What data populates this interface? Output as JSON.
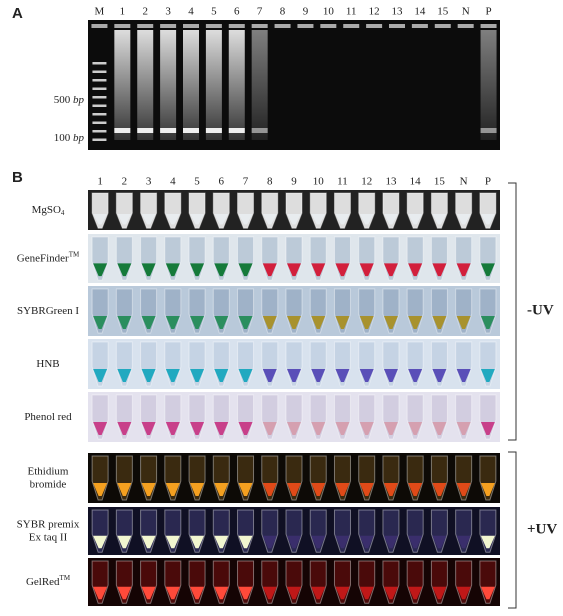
{
  "panel_a": {
    "label": "A",
    "lanes": [
      "M",
      "1",
      "2",
      "3",
      "4",
      "5",
      "6",
      "7",
      "8",
      "9",
      "10",
      "11",
      "12",
      "13",
      "14",
      "15",
      "N",
      "P"
    ],
    "markers": [
      {
        "size": "500",
        "unit": "bp"
      },
      {
        "size": "100",
        "unit": "bp"
      }
    ]
  },
  "panel_b": {
    "label": "B",
    "lanes": [
      "1",
      "2",
      "3",
      "4",
      "5",
      "6",
      "7",
      "8",
      "9",
      "10",
      "11",
      "12",
      "13",
      "14",
      "15",
      "N",
      "P"
    ],
    "rows": [
      {
        "lines": [
          "MgSO"
        ],
        "sub": "4"
      },
      {
        "lines": [
          "GeneFinder"
        ],
        "sup": "TM"
      },
      {
        "lines": [
          "SYBRGreen I"
        ]
      },
      {
        "lines": [
          "HNB"
        ]
      },
      {
        "lines": [
          "Phenol red"
        ]
      },
      {
        "lines": [
          "Ethidium",
          "bromide"
        ]
      },
      {
        "lines": [
          "SYBR premix",
          "Ex taq II"
        ]
      },
      {
        "lines": [
          "GelRed"
        ],
        "sup": "TM"
      }
    ],
    "groups": [
      {
        "label": "-UV"
      },
      {
        "label": "+UV"
      }
    ]
  }
}
